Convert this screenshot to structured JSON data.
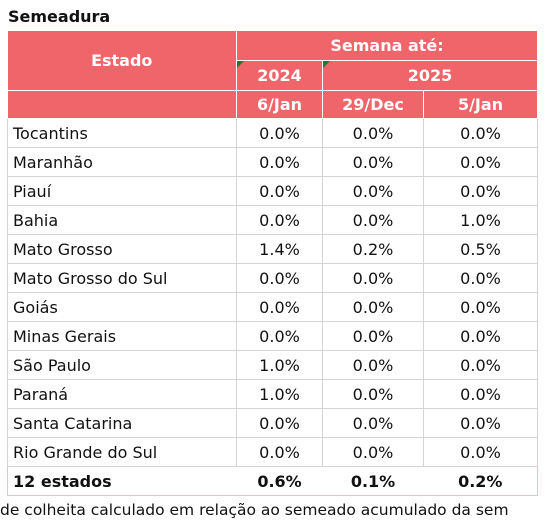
{
  "title": "Semeadura",
  "header": {
    "estado": "Estado",
    "semana": "Semana até:",
    "years": [
      "2024",
      "2025"
    ],
    "dates": [
      "6/Jan",
      "29/Dec",
      "5/Jan"
    ]
  },
  "rows": [
    {
      "estado": "Tocantins",
      "v1": "0.0%",
      "v2": "0.0%",
      "v3": "0.0%"
    },
    {
      "estado": "Maranhão",
      "v1": "0.0%",
      "v2": "0.0%",
      "v3": "0.0%"
    },
    {
      "estado": "Piauí",
      "v1": "0.0%",
      "v2": "0.0%",
      "v3": "0.0%"
    },
    {
      "estado": "Bahia",
      "v1": "0.0%",
      "v2": "0.0%",
      "v3": "1.0%"
    },
    {
      "estado": "Mato Grosso",
      "v1": "1.4%",
      "v2": "0.2%",
      "v3": "0.5%"
    },
    {
      "estado": "Mato Grosso do Sul",
      "v1": "0.0%",
      "v2": "0.0%",
      "v3": "0.0%"
    },
    {
      "estado": "Goiás",
      "v1": "0.0%",
      "v2": "0.0%",
      "v3": "0.0%"
    },
    {
      "estado": "Minas Gerais",
      "v1": "0.0%",
      "v2": "0.0%",
      "v3": "0.0%"
    },
    {
      "estado": "São Paulo",
      "v1": "1.0%",
      "v2": "0.0%",
      "v3": "0.0%"
    },
    {
      "estado": "Paraná",
      "v1": "1.0%",
      "v2": "0.0%",
      "v3": "0.0%"
    },
    {
      "estado": "Santa Catarina",
      "v1": "0.0%",
      "v2": "0.0%",
      "v3": "0.0%"
    },
    {
      "estado": "Rio Grande do Sul",
      "v1": "0.0%",
      "v2": "0.0%",
      "v3": "0.0%"
    }
  ],
  "total": {
    "estado": "12 estados",
    "v1": "0.6%",
    "v2": "0.1%",
    "v3": "0.2%"
  },
  "footnote": "de colheita calculado em relação ao semeado acumulado da sem",
  "colors": {
    "header_bg": "#f06569",
    "header_text": "#ffffff",
    "note_marker": "#1b7a2e"
  }
}
